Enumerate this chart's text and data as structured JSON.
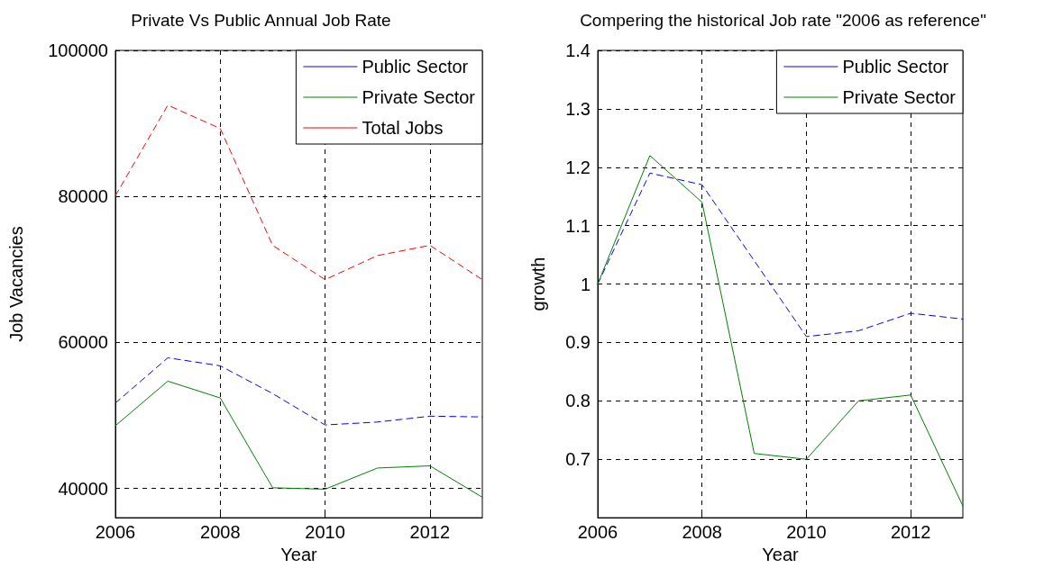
{
  "chart_data": [
    {
      "type": "line",
      "title": "Private Vs Public Annual Job Rate",
      "xlabel": "Year",
      "ylabel": "Job Vacancies",
      "x": [
        2006,
        2007,
        2008,
        2009,
        2010,
        2011,
        2012,
        2013
      ],
      "xlim": [
        2006,
        2013
      ],
      "xticks": [
        2006,
        2008,
        2010,
        2012
      ],
      "ylim": [
        36000,
        100000
      ],
      "yticks": [
        40000,
        60000,
        80000,
        100000
      ],
      "grid": true,
      "legend": "top right",
      "marker": "none",
      "series": [
        {
          "name": "Public Sector",
          "color": "#0000ff",
          "line_style": "dashed",
          "values": [
            51700,
            57900,
            56800,
            53000,
            48700,
            49100,
            49900,
            49800
          ]
        },
        {
          "name": "Private Sector",
          "color": "#008000",
          "line_style": "solid",
          "values": [
            48600,
            54700,
            52400,
            40100,
            39900,
            42800,
            43100,
            38800
          ]
        },
        {
          "name": "Total Jobs",
          "color": "#ff0000",
          "line_style": "dashed",
          "values": [
            80100,
            92500,
            89300,
            73300,
            68600,
            71900,
            73300,
            68600
          ]
        }
      ]
    },
    {
      "type": "line",
      "title": "Compering the historical Job rate \"2006 as reference\"",
      "xlabel": "Year",
      "ylabel": "growth",
      "x": [
        2006,
        2007,
        2008,
        2009,
        2010,
        2011,
        2012,
        2013
      ],
      "xlim": [
        2006,
        2013
      ],
      "xticks": [
        2006,
        2008,
        2010,
        2012
      ],
      "ylim": [
        0.6,
        1.4
      ],
      "yticks": [
        0.7,
        0.8,
        0.9,
        1,
        1.1,
        1.2,
        1.3,
        1.4
      ],
      "grid": true,
      "legend": "top right",
      "marker": "none",
      "series": [
        {
          "name": "Public Sector",
          "color": "#0000ff",
          "line_style": "dashed",
          "values": [
            1.0,
            1.19,
            1.17,
            1.04,
            0.91,
            0.92,
            0.95,
            0.94
          ]
        },
        {
          "name": "Private Sector",
          "color": "#008000",
          "line_style": "solid",
          "values": [
            1.0,
            1.22,
            1.14,
            0.71,
            0.7,
            0.8,
            0.81,
            0.62
          ]
        }
      ]
    }
  ]
}
